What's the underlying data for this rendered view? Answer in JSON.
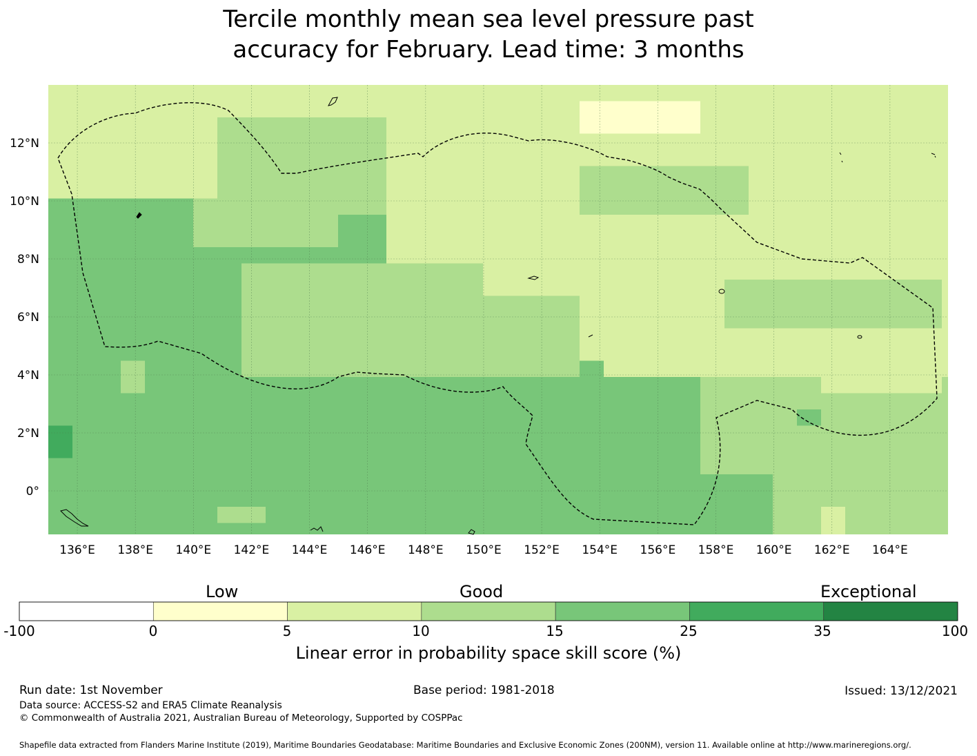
{
  "title": {
    "line1": "Tercile monthly mean sea level pressure past",
    "line2": "accuracy for February. Lead time: 3 months"
  },
  "map": {
    "lon_labels": [
      "136°E",
      "138°E",
      "140°E",
      "142°E",
      "144°E",
      "146°E",
      "148°E",
      "150°E",
      "152°E",
      "154°E",
      "156°E",
      "158°E",
      "160°E",
      "162°E",
      "164°E"
    ],
    "lon_values": [
      136,
      138,
      140,
      142,
      144,
      146,
      148,
      150,
      152,
      154,
      156,
      158,
      160,
      162,
      164
    ],
    "lat_labels": [
      "12°N",
      "10°N",
      "8°N",
      "6°N",
      "4°N",
      "2°N",
      "0°"
    ],
    "lat_values": [
      12,
      10,
      8,
      6,
      4,
      2,
      0
    ],
    "lon_range": [
      135,
      166
    ],
    "lat_range": [
      -1.5,
      14
    ]
  },
  "colorbar": {
    "category_labels": [
      "Low",
      "Good",
      "Exceptional"
    ],
    "ticks": [
      "-100",
      "0",
      "5",
      "10",
      "15",
      "25",
      "35",
      "100"
    ],
    "colors": [
      "#ffffff",
      "#ffffcc",
      "#d9f0a3",
      "#addd8e",
      "#78c679",
      "#41ab5d",
      "#238443"
    ],
    "title": "Linear error in probability space skill score (%)"
  },
  "footer": {
    "run_date": "Run date: 1st November",
    "base_period": "Base period: 1981-2018",
    "issued": "Issued: 13/12/2021",
    "data_source": "Data source: ACCESS-S2 and ERA5 Climate Reanalysis",
    "copyright": "© Commonwealth of Australia 2021, Australian Bureau of Meteorology, Supported by COSPPac",
    "shapefile": "Shapefile data extracted from Flanders Marine Institute (2019), Maritime Boundaries Geodatabase: Maritime Boundaries and Exclusive Economic Zones (200NM), version 11. Available online at http://www.marineregions.org/."
  }
}
